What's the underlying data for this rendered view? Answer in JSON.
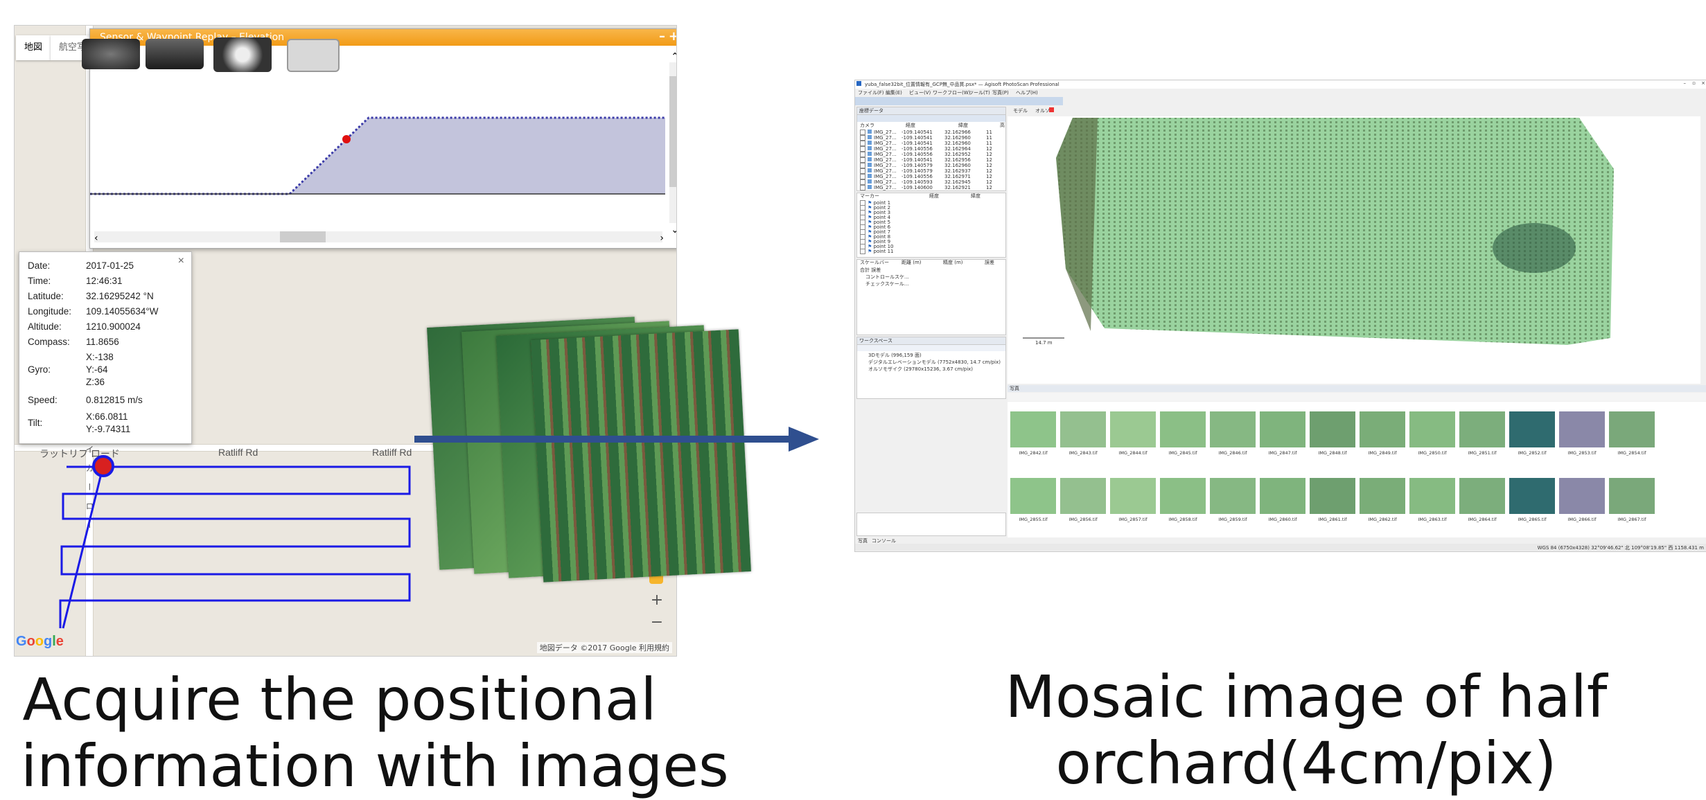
{
  "map": {
    "map_type_buttons": [
      "地図",
      "航空写"
    ],
    "elevation_window": {
      "title": "Sensor & Waypoint Replay – Elevation",
      "minimize": "–",
      "maximize": "+"
    },
    "info_popup": {
      "close": "×",
      "rows": [
        {
          "label": "Date:",
          "value": "2017-01-25"
        },
        {
          "label": "Time:",
          "value": "12:46:31"
        },
        {
          "label": "Latitude:",
          "value": "32.16295242 °N"
        },
        {
          "label": "Longitude:",
          "value": "109.14055634°W"
        },
        {
          "label": "Altitude:",
          "value": "1210.900024"
        },
        {
          "label": "Compass:",
          "value": "11.8656"
        }
      ],
      "gyro": {
        "label": "Gyro:",
        "x": "X:-138",
        "y": "Y:-64",
        "z": "Z:36"
      },
      "speed": {
        "label": "Speed:",
        "value": "0.812815 m/s"
      },
      "tilt": {
        "label": "Tilt:",
        "x": "X:66.0811",
        "y": "Y:-9.74311"
      }
    },
    "road_labels": [
      "ラットリフ ロード",
      "Ratliff Rd",
      "Ratliff Rd"
    ],
    "vertical_road_label": "シメ イ カ ー ロ ー",
    "zoom_in": "+",
    "zoom_out": "−",
    "google_logo": "Google",
    "attribution": "地図データ ©2017 Google   利用規約"
  },
  "photoscan": {
    "title": "yuba_false32bit_位置情報有_GCP無_中品質.psx* — Agisoft PhotoScan Professional",
    "menu": [
      "ファイル(F)",
      "編集(E)",
      "ビュー(V)",
      "ワークフロー(W)",
      "ツール(T)",
      "写真(P)",
      "ヘルプ(H)"
    ],
    "ref_pane_title": "座標データ",
    "tabs": [
      "モデル",
      "オルソ"
    ],
    "camera_header": [
      "カメラ",
      "経度",
      "緯度",
      "高"
    ],
    "cameras": [
      {
        "name": "IMG_27...",
        "lon": "-109.140541",
        "lat": "32.162966",
        "h": "11"
      },
      {
        "name": "IMG_27...",
        "lon": "-109.140541",
        "lat": "32.162960",
        "h": "11"
      },
      {
        "name": "IMG_27...",
        "lon": "-109.140541",
        "lat": "32.162960",
        "h": "11"
      },
      {
        "name": "IMG_27...",
        "lon": "-109.140556",
        "lat": "32.162964",
        "h": "12"
      },
      {
        "name": "IMG_27...",
        "lon": "-109.140556",
        "lat": "32.162952",
        "h": "12"
      },
      {
        "name": "IMG_27...",
        "lon": "-109.140541",
        "lat": "32.162956",
        "h": "12"
      },
      {
        "name": "IMG_27...",
        "lon": "-109.140579",
        "lat": "32.162960",
        "h": "12"
      },
      {
        "name": "IMG_27...",
        "lon": "-109.140579",
        "lat": "32.162937",
        "h": "12"
      },
      {
        "name": "IMG_27...",
        "lon": "-109.140556",
        "lat": "32.162971",
        "h": "12"
      },
      {
        "name": "IMG_27...",
        "lon": "-109.140593",
        "lat": "32.162945",
        "h": "12"
      },
      {
        "name": "IMG_27...",
        "lon": "-109.140600",
        "lat": "32.162921",
        "h": "12"
      }
    ],
    "marker_header": [
      "マーカー",
      "経度",
      "緯度"
    ],
    "markers": [
      "point 1",
      "point 2",
      "point 3",
      "point 4",
      "point 5",
      "point 6",
      "point 7",
      "point 8",
      "point 9",
      "point 10",
      "point 11"
    ],
    "scalebar_header": [
      "スケールバー",
      "距離 (m)",
      "精度 (m)",
      "誤差"
    ],
    "scalebar_rows": [
      "合計 誤差",
      "コントロールスケ...",
      "チェックスケール..."
    ],
    "scale_label": "14.7 m",
    "workspace_title": "ワークスペース",
    "workspace_items": [
      "3Dモデル (996,159 面)",
      "デジタルエレベーションモデル (7752x4830, 14.7 cm/pix)",
      "オルソモザイク (29780x15236, 3.67 cm/pix)"
    ],
    "photos_title": "写真",
    "bottom_tabs": [
      "写真",
      "コンソール"
    ],
    "thumbnails_row1": [
      "IMG_2842.tif",
      "IMG_2843.tif",
      "IMG_2844.tif",
      "IMG_2845.tif",
      "IMG_2846.tif",
      "IMG_2847.tif",
      "IMG_2848.tif",
      "IMG_2849.tif",
      "IMG_2850.tif",
      "IMG_2851.tif",
      "IMG_2852.tif",
      "IMG_2853.tif",
      "IMG_2854.tif"
    ],
    "thumbnails_row2": [
      "IMG_2855.tif",
      "IMG_2856.tif",
      "IMG_2857.tif",
      "IMG_2858.tif",
      "IMG_2859.tif",
      "IMG_2860.tif",
      "IMG_2861.tif",
      "IMG_2862.tif",
      "IMG_2863.tif",
      "IMG_2864.tif",
      "IMG_2865.tif",
      "IMG_2866.tif",
      "IMG_2867.tif"
    ],
    "status": "WGS 84 (6750x4328)  32°09'46.62\" 北  109°08'19.85\" 西  1158.431 m"
  },
  "captions": {
    "left_line1": "Acquire the positional",
    "left_line2": "information with images",
    "right_line1": "Mosaic image of half",
    "right_line2": "orchard(4cm/pix)"
  },
  "colors": {
    "track": "#1a1ae6",
    "titlebar": "#f29b16",
    "arrow": "#2f4f8f",
    "elevation_fill": "#c3c4dc",
    "orchard": "#9ad39f"
  }
}
